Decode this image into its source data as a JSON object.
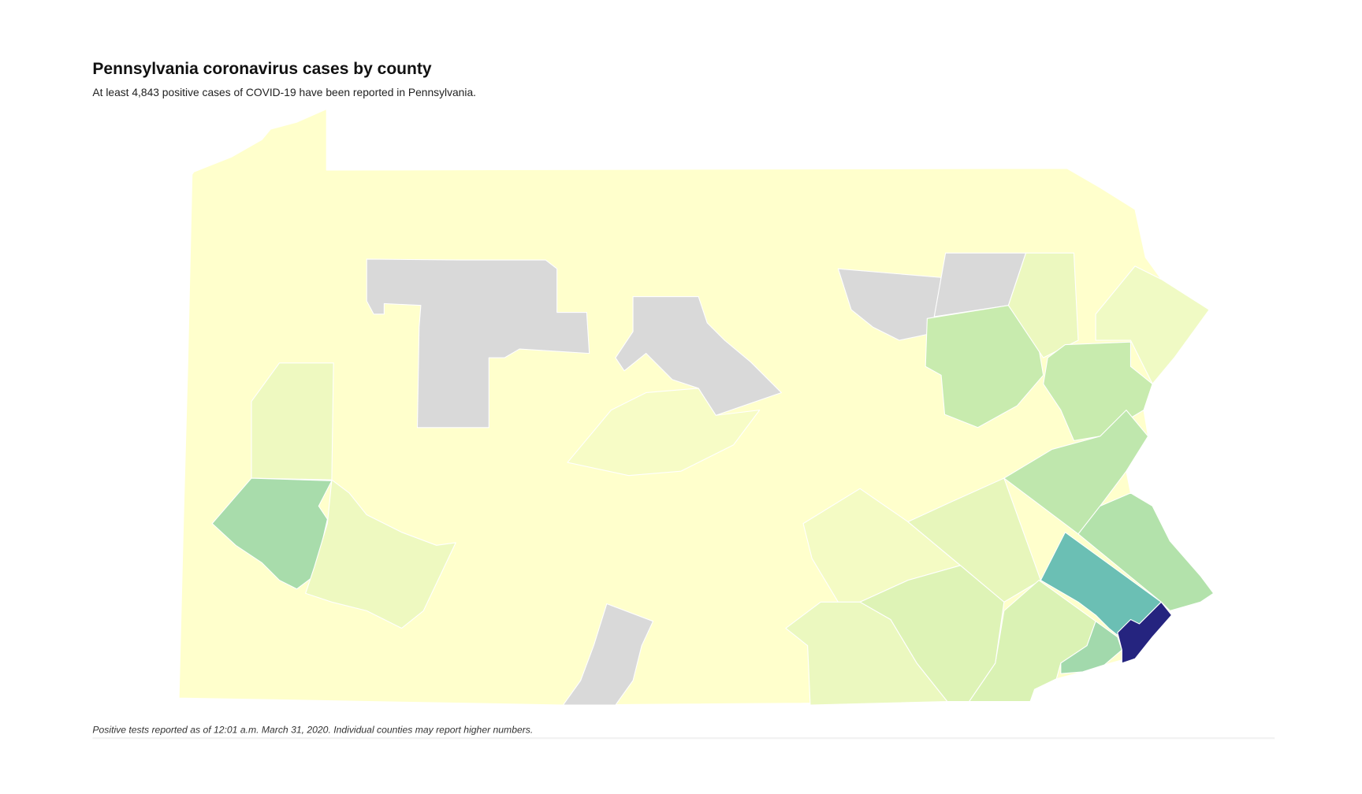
{
  "header": {
    "title": "Pennsylvania coronavirus cases by county",
    "subtitle": "At least 4,843 positive cases of COVID-19 have been reported in Pennsylvania."
  },
  "footnote": "Positive tests reported as of 12:01 a.m. March 31, 2020. Individual counties may report higher numbers."
}
